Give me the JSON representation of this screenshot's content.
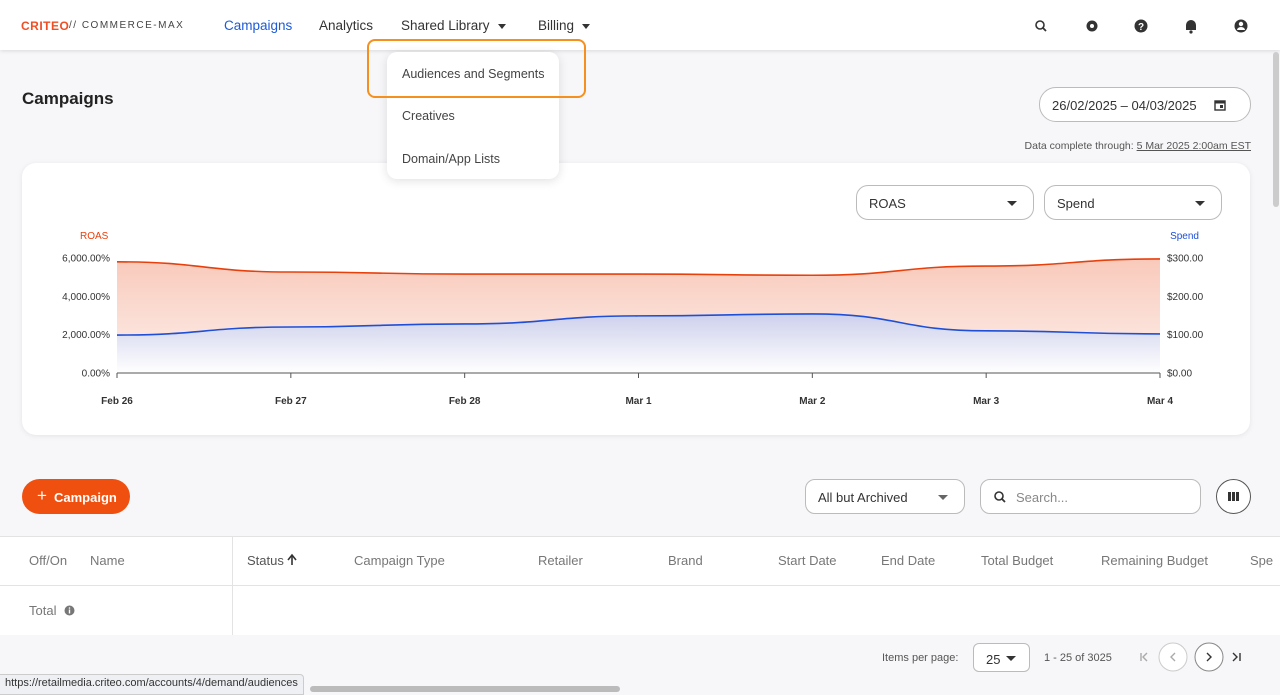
{
  "header": {
    "logo": "CRITEO",
    "product": "// COMMERCE-MAX",
    "nav": [
      "Campaigns",
      "Analytics",
      "Shared Library",
      "Billing"
    ]
  },
  "menu": {
    "items": [
      "Audiences and Segments",
      "Creatives",
      "Domain/App Lists"
    ]
  },
  "page": {
    "title": "Campaigns",
    "date_range": "26/02/2025 – 04/03/2025",
    "data_complete_label": "Data complete through:",
    "data_complete_date": "5 Mar 2025 2:00am EST"
  },
  "chart_data": {
    "type": "area",
    "categories": [
      "Feb 26",
      "Feb 27",
      "Feb 28",
      "Mar 1",
      "Mar 2",
      "Mar 3",
      "Mar 4"
    ],
    "series": [
      {
        "name": "ROAS",
        "color": "#e8400c",
        "values": [
          5800,
          5270,
          5160,
          5160,
          5100,
          5580,
          5950
        ]
      },
      {
        "name": "Spend",
        "color": "#1d4fd8",
        "axis": "y2",
        "values": [
          99,
          120,
          128,
          149,
          154,
          110,
          102
        ]
      }
    ],
    "ylim": [
      0,
      6000
    ],
    "yticks": [
      {
        "value": 0,
        "label": "0.00%"
      },
      {
        "value": 2000,
        "label": "2,000.00%"
      },
      {
        "value": 4000,
        "label": "4,000.00%"
      },
      {
        "value": 6000,
        "label": "6,000.00%"
      }
    ],
    "y2lim": [
      0,
      300
    ],
    "y2ticks": [
      {
        "value": 0,
        "label": "$0.00"
      },
      {
        "value": 100,
        "label": "$100.00"
      },
      {
        "value": 200,
        "label": "$200.00"
      },
      {
        "value": 300,
        "label": "$300.00"
      }
    ]
  },
  "toolbar": {
    "add_button": "Campaign",
    "filter": "All but Archived",
    "search_placeholder": "Search..."
  },
  "table": {
    "columns": [
      "Off/On",
      "Name",
      "Status",
      "Campaign Type",
      "Retailer",
      "Brand",
      "Start Date",
      "End Date",
      "Total Budget",
      "Remaining Budget",
      "Spe"
    ],
    "total_label": "Total"
  },
  "pagination": {
    "items_per_page_label": "Items per page:",
    "items_per_page": "25",
    "range": "1 - 25 of 3025"
  },
  "status_bar": {
    "url": "https://retailmedia.criteo.com/accounts/4/demand/audiences"
  }
}
